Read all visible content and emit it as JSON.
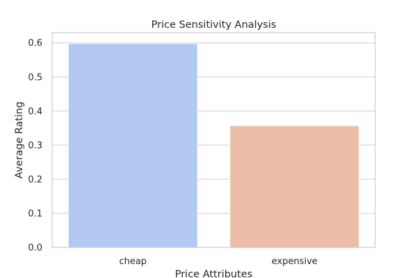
{
  "chart_data": {
    "type": "bar",
    "title": "Price Sensitivity Analysis",
    "xlabel": "Price Attributes",
    "ylabel": "Average Rating",
    "categories": [
      "cheap",
      "expensive"
    ],
    "values": [
      0.598,
      0.357
    ],
    "colors": [
      "#b3c9f4",
      "#ecbea8"
    ],
    "ylim": [
      0,
      0.63
    ],
    "yticks": [
      "0.0",
      "0.1",
      "0.2",
      "0.3",
      "0.4",
      "0.5",
      "0.6"
    ],
    "grid": true,
    "legend": "none"
  }
}
